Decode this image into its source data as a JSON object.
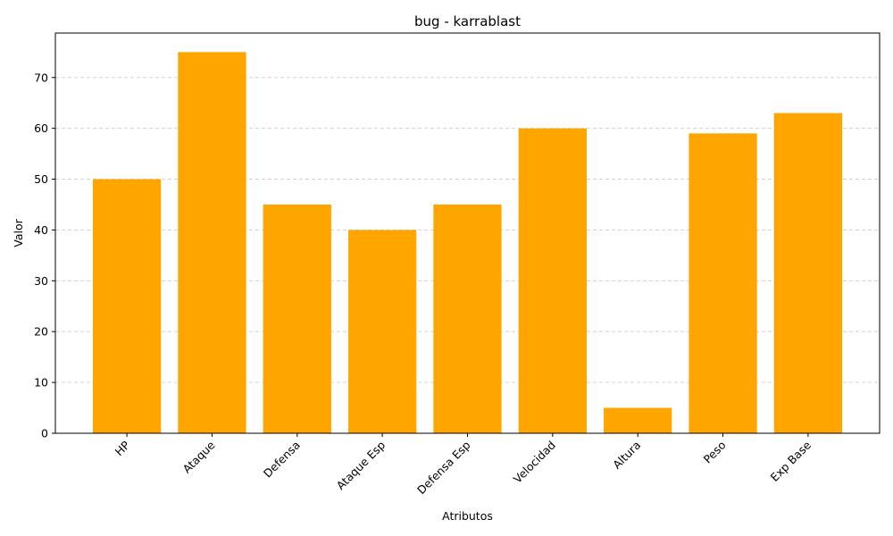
{
  "chart_data": {
    "type": "bar",
    "title": "bug - karrablast",
    "xlabel": "Atributos",
    "ylabel": "Valor",
    "categories": [
      "HP",
      "Ataque",
      "Defensa",
      "Ataque Esp",
      "Defensa Esp",
      "Velocidad",
      "Altura",
      "Peso",
      "Exp Base"
    ],
    "values": [
      50,
      75,
      45,
      40,
      45,
      60,
      5,
      59,
      63
    ],
    "ylim": [
      0,
      78.75
    ],
    "yticks": [
      0,
      10,
      20,
      30,
      40,
      50,
      60,
      70
    ],
    "bar_color": "#FFA500",
    "grid": "y-dashed",
    "xtick_rotation": 45
  }
}
